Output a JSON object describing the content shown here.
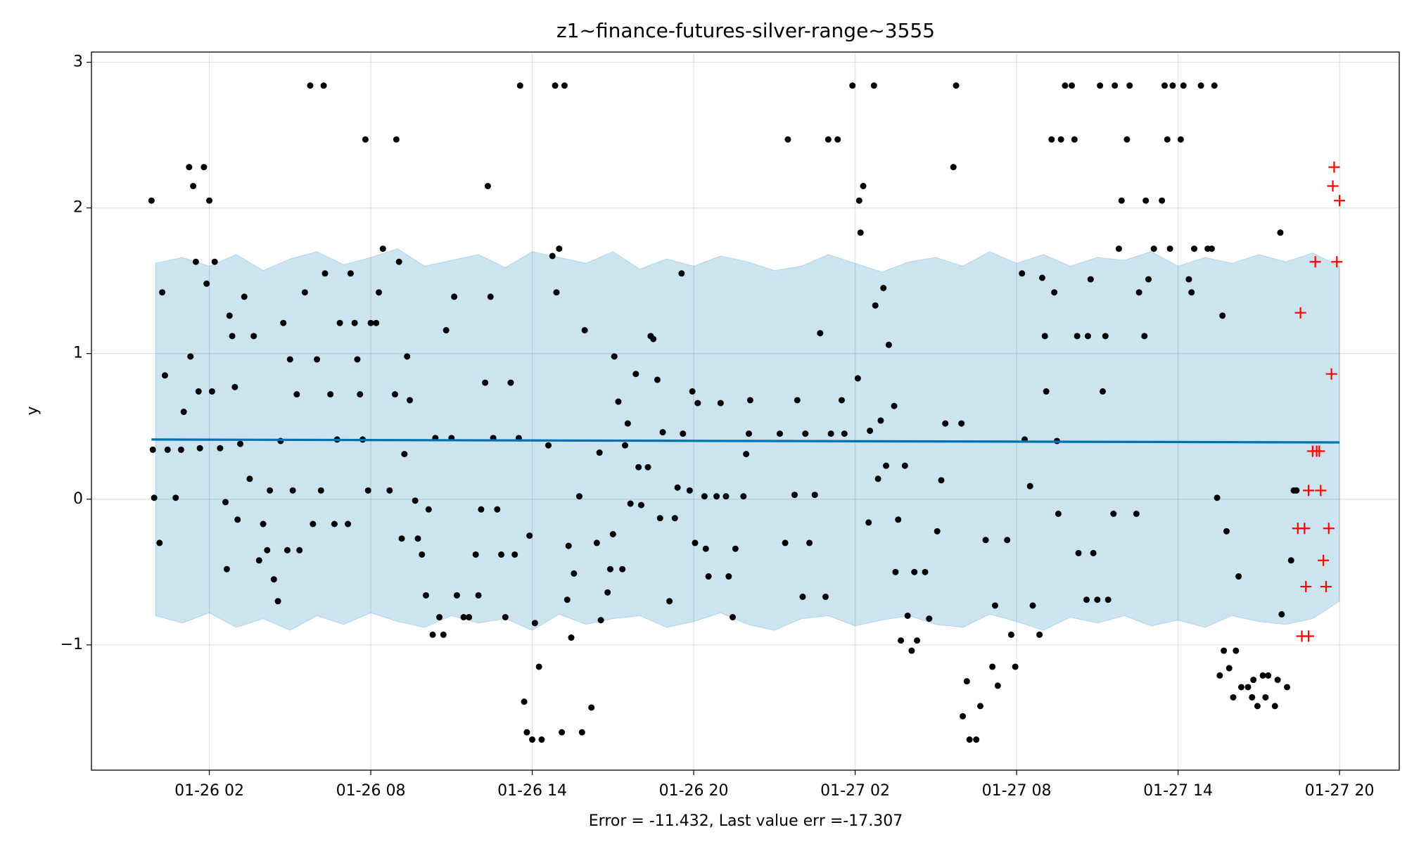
{
  "chart_data": {
    "type": "forecast",
    "title": "z1~finance-futures-silver-range~3555",
    "xlabel": "Error = -11.432, Last value err =-17.307",
    "ylabel": "y",
    "xlim": [
      -2.38,
      46.22
    ],
    "ylim": [
      -1.86,
      3.07
    ],
    "xticks": [
      {
        "value": 2,
        "label": "01-26 02"
      },
      {
        "value": 8,
        "label": "01-26 08"
      },
      {
        "value": 14,
        "label": "01-26 14"
      },
      {
        "value": 20,
        "label": "01-26 20"
      },
      {
        "value": 26,
        "label": "01-27 02"
      },
      {
        "value": 32,
        "label": "01-27 08"
      },
      {
        "value": 38,
        "label": "01-27 14"
      },
      {
        "value": 44,
        "label": "01-27 20"
      }
    ],
    "yticks": [
      3,
      2,
      1,
      0,
      {
        "value": -1,
        "label": "−1"
      }
    ],
    "grid": true,
    "band": {
      "color": "#0072b2",
      "opacity": 0.2,
      "x": [
        0,
        1,
        2,
        3,
        4,
        5,
        6,
        7,
        8,
        9,
        10,
        11,
        12,
        13,
        14,
        15,
        16,
        17,
        18,
        19,
        20,
        21,
        22,
        23,
        24,
        25,
        26,
        27,
        28,
        29,
        30,
        31,
        32,
        33,
        34,
        35,
        36,
        37,
        38,
        39,
        40,
        41,
        42,
        43,
        44
      ],
      "upper": [
        1.62,
        1.66,
        1.6,
        1.68,
        1.57,
        1.65,
        1.7,
        1.61,
        1.66,
        1.72,
        1.6,
        1.64,
        1.68,
        1.59,
        1.7,
        1.66,
        1.62,
        1.7,
        1.58,
        1.65,
        1.6,
        1.67,
        1.63,
        1.57,
        1.6,
        1.68,
        1.62,
        1.56,
        1.63,
        1.66,
        1.6,
        1.7,
        1.62,
        1.68,
        1.6,
        1.66,
        1.64,
        1.7,
        1.6,
        1.66,
        1.62,
        1.68,
        1.63,
        1.69,
        1.6
      ],
      "lower": [
        -0.8,
        -0.85,
        -0.78,
        -0.88,
        -0.82,
        -0.9,
        -0.8,
        -0.86,
        -0.78,
        -0.84,
        -0.88,
        -0.8,
        -0.85,
        -0.82,
        -0.9,
        -0.79,
        -0.86,
        -0.82,
        -0.8,
        -0.88,
        -0.84,
        -0.78,
        -0.86,
        -0.9,
        -0.82,
        -0.8,
        -0.87,
        -0.83,
        -0.8,
        -0.86,
        -0.88,
        -0.79,
        -0.84,
        -0.9,
        -0.81,
        -0.85,
        -0.8,
        -0.87,
        -0.83,
        -0.88,
        -0.8,
        -0.84,
        -0.86,
        -0.82,
        -0.7
      ]
    },
    "forecast": {
      "color": "#0072b2",
      "x": [
        -0.15,
        44
      ],
      "values": [
        0.41,
        0.39
      ]
    },
    "actual": {
      "color": "#000000",
      "x": [
        -0.15,
        -0.1,
        -0.05,
        0.15,
        0.25,
        0.35,
        0.45,
        0.75,
        0.95,
        1.05,
        1.25,
        1.3,
        1.4,
        1.5,
        1.6,
        1.65,
        1.8,
        1.9,
        2.0,
        2.1,
        2.2,
        2.4,
        2.6,
        2.65,
        2.75,
        2.85,
        2.95,
        3.05,
        3.15,
        3.3,
        3.5,
        3.65,
        3.85,
        4.0,
        4.15,
        4.25,
        4.4,
        4.55,
        4.65,
        4.75,
        4.9,
        5.0,
        5.1,
        5.25,
        5.35,
        5.55,
        5.75,
        5.85,
        6.0,
        6.15,
        6.25,
        6.3,
        6.5,
        6.65,
        6.75,
        6.85,
        7.15,
        7.25,
        7.4,
        7.5,
        7.6,
        7.7,
        7.8,
        7.9,
        8.0,
        8.2,
        8.3,
        8.45,
        8.7,
        8.9,
        8.95,
        9.05,
        9.15,
        9.25,
        9.35,
        9.45,
        9.65,
        9.75,
        9.9,
        10.05,
        10.15,
        10.3,
        10.4,
        10.55,
        10.7,
        10.8,
        11.0,
        11.1,
        11.2,
        11.45,
        11.65,
        11.9,
        12.0,
        12.1,
        12.25,
        12.35,
        12.45,
        12.55,
        12.7,
        12.85,
        13.0,
        13.2,
        13.35,
        13.5,
        13.55,
        13.7,
        13.8,
        13.9,
        14.0,
        14.1,
        14.25,
        14.35,
        14.6,
        14.75,
        14.85,
        14.9,
        15.0,
        15.1,
        15.2,
        15.3,
        15.35,
        15.45,
        15.55,
        15.75,
        15.85,
        15.95,
        16.2,
        16.4,
        16.5,
        16.55,
        16.8,
        16.9,
        17.0,
        17.05,
        17.2,
        17.35,
        17.45,
        17.55,
        17.65,
        17.85,
        17.95,
        18.05,
        18.3,
        18.4,
        18.5,
        18.65,
        18.75,
        18.85,
        19.1,
        19.3,
        19.4,
        19.55,
        19.6,
        19.85,
        19.95,
        20.05,
        20.15,
        20.4,
        20.45,
        20.55,
        20.85,
        21.0,
        21.2,
        21.3,
        21.45,
        21.55,
        21.85,
        21.95,
        22.05,
        22.1,
        23.2,
        23.4,
        23.5,
        23.75,
        23.85,
        24.05,
        24.15,
        24.3,
        24.5,
        24.7,
        24.9,
        25.0,
        25.1,
        25.35,
        25.5,
        25.6,
        25.9,
        26.1,
        26.15,
        26.2,
        26.3,
        26.5,
        26.55,
        26.7,
        26.75,
        26.85,
        26.95,
        27.05,
        27.15,
        27.25,
        27.45,
        27.5,
        27.6,
        27.7,
        27.85,
        27.95,
        28.1,
        28.2,
        28.3,
        28.6,
        28.75,
        29.05,
        29.2,
        29.35,
        29.65,
        29.75,
        29.95,
        30.0,
        30.15,
        30.25,
        30.5,
        30.65,
        30.85,
        31.1,
        31.2,
        31.3,
        31.65,
        31.8,
        31.95,
        32.2,
        32.3,
        32.5,
        32.6,
        32.85,
        32.95,
        33.05,
        33.1,
        33.3,
        33.4,
        33.5,
        33.55,
        33.65,
        33.8,
        34.05,
        34.15,
        34.25,
        34.3,
        34.6,
        34.65,
        34.75,
        34.85,
        35.0,
        35.1,
        35.2,
        35.3,
        35.4,
        35.6,
        35.65,
        35.8,
        35.9,
        36.1,
        36.2,
        36.45,
        36.55,
        36.75,
        36.8,
        36.9,
        37.1,
        37.4,
        37.5,
        37.6,
        37.7,
        37.8,
        38.1,
        38.2,
        38.4,
        38.5,
        38.6,
        38.85,
        39.1,
        39.25,
        39.35,
        39.45,
        39.55,
        39.65,
        39.7,
        39.8,
        39.9,
        40.05,
        40.15,
        40.25,
        40.35,
        40.6,
        40.75,
        40.8,
        40.95,
        41.15,
        41.25,
        41.35,
        41.6,
        41.7,
        41.8,
        41.85,
        42.05,
        42.2,
        42.3,
        42.4
      ],
      "values": [
        2.05,
        0.34,
        0.01,
        -0.3,
        1.42,
        0.85,
        0.34,
        0.01,
        0.34,
        0.6,
        2.28,
        0.98,
        2.15,
        1.63,
        0.74,
        0.35,
        2.28,
        1.48,
        2.05,
        0.74,
        1.63,
        0.35,
        -0.02,
        -0.48,
        1.26,
        1.12,
        0.77,
        -0.14,
        0.38,
        1.39,
        0.14,
        1.12,
        -0.42,
        -0.17,
        -0.35,
        0.06,
        -0.55,
        -0.7,
        0.4,
        1.21,
        -0.35,
        0.96,
        0.06,
        0.72,
        -0.35,
        1.42,
        2.84,
        -0.17,
        0.96,
        0.06,
        2.84,
        1.55,
        0.72,
        -0.17,
        0.41,
        1.21,
        -0.17,
        1.55,
        1.21,
        0.96,
        0.72,
        0.41,
        2.47,
        0.06,
        1.21,
        1.21,
        1.42,
        1.72,
        0.06,
        0.72,
        2.47,
        1.63,
        -0.27,
        0.31,
        0.98,
        0.68,
        -0.01,
        -0.27,
        -0.38,
        -0.66,
        -0.07,
        -0.93,
        0.42,
        -0.81,
        -0.93,
        1.16,
        0.42,
        1.39,
        -0.66,
        -0.81,
        -0.81,
        -0.38,
        -0.66,
        -0.07,
        0.8,
        2.15,
        1.39,
        0.42,
        -0.07,
        -0.38,
        -0.81,
        0.8,
        -0.38,
        0.42,
        2.84,
        -1.39,
        -1.6,
        -0.25,
        -1.65,
        -0.85,
        -1.15,
        -1.65,
        0.37,
        1.67,
        2.84,
        1.42,
        1.72,
        -1.6,
        2.84,
        -0.69,
        -0.32,
        -0.95,
        -0.51,
        0.02,
        -1.6,
        1.16,
        -1.43,
        -0.3,
        0.32,
        -0.83,
        -0.64,
        -0.48,
        -0.24,
        0.98,
        0.67,
        -0.48,
        0.37,
        0.52,
        -0.03,
        0.86,
        0.22,
        -0.04,
        0.22,
        1.12,
        1.1,
        0.82,
        -0.13,
        0.46,
        -0.7,
        -0.13,
        0.08,
        1.55,
        0.45,
        0.06,
        0.74,
        -0.3,
        0.66,
        0.02,
        -0.34,
        -0.53,
        0.02,
        0.66,
        0.02,
        -0.53,
        -0.81,
        -0.34,
        0.02,
        0.31,
        0.45,
        0.68,
        0.45,
        -0.3,
        2.47,
        0.03,
        0.68,
        -0.67,
        0.45,
        -0.3,
        0.03,
        1.14,
        -0.67,
        2.47,
        0.45,
        2.47,
        0.68,
        0.45,
        2.84,
        0.83,
        2.05,
        1.83,
        2.15,
        -0.16,
        0.47,
        2.84,
        1.33,
        0.14,
        0.54,
        1.45,
        0.23,
        1.06,
        0.64,
        -0.5,
        -0.14,
        -0.97,
        0.23,
        -0.8,
        -1.04,
        -0.5,
        -0.97,
        -0.5,
        -0.82,
        -0.22,
        0.13,
        0.52,
        2.28,
        2.84,
        0.52,
        -1.49,
        -1.25,
        -1.65,
        -1.65,
        -1.42,
        -0.28,
        -1.15,
        -0.73,
        -1.28,
        -0.28,
        -0.93,
        -1.15,
        1.55,
        0.41,
        0.09,
        -0.73,
        -0.93,
        1.52,
        1.12,
        0.74,
        2.47,
        1.42,
        0.4,
        -0.1,
        2.47,
        2.84,
        2.84,
        2.47,
        1.12,
        -0.37,
        -0.69,
        1.12,
        1.51,
        -0.37,
        -0.69,
        2.84,
        0.74,
        1.12,
        -0.69,
        -0.1,
        2.84,
        1.72,
        2.05,
        2.47,
        2.84,
        -0.1,
        1.42,
        1.12,
        2.05,
        1.51,
        1.72,
        2.05,
        2.84,
        2.47,
        1.72,
        2.84,
        2.47,
        2.84,
        1.51,
        1.42,
        1.72,
        2.84,
        1.72,
        1.72,
        2.84,
        0.01,
        -1.21,
        1.26,
        -1.04,
        -0.22,
        -1.16,
        -1.36,
        -1.04,
        -0.53,
        -1.29,
        -1.29,
        -1.36,
        -1.24,
        -1.42,
        -1.21,
        -1.36,
        -1.21,
        -1.42,
        -1.24,
        1.83,
        -0.79,
        -1.29,
        -0.42,
        0.06,
        0.06
      ]
    },
    "test": {
      "color": "#ff0000",
      "x": [
        42.45,
        42.55,
        42.6,
        42.7,
        42.75,
        42.85,
        42.85,
        43.0,
        43.1,
        43.15,
        43.25,
        43.3,
        43.4,
        43.5,
        43.6,
        43.7,
        43.75,
        43.8,
        43.9,
        44.0
      ],
      "values": [
        -0.2,
        1.28,
        -0.94,
        -0.2,
        -0.6,
        -0.94,
        0.06,
        0.33,
        1.63,
        0.33,
        0.33,
        0.06,
        -0.42,
        -0.6,
        -0.2,
        0.86,
        2.15,
        2.28,
        1.63,
        2.05
      ]
    }
  }
}
